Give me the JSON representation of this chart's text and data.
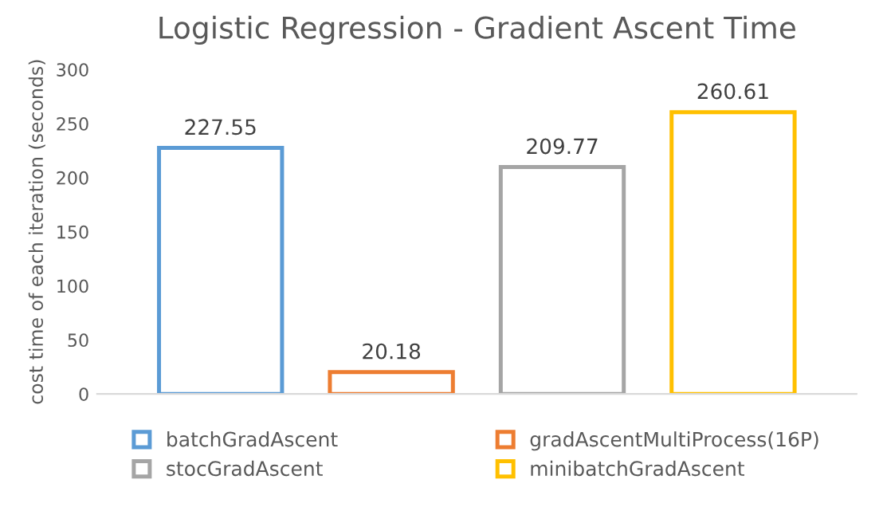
{
  "chart_data": {
    "type": "bar",
    "title": "Logistic Regression - Gradient Ascent Time",
    "ylabel": "cost time of each iteration (seconds)",
    "categories": [
      null
    ],
    "series": [
      {
        "name": "batchGradAscent",
        "color": "#5b9bd5",
        "values": [
          227.55
        ]
      },
      {
        "name": "gradAscentMultiProcess(16P)",
        "color": "#ed7d31",
        "values": [
          20.18
        ]
      },
      {
        "name": "stocGradAscent",
        "color": "#a5a5a5",
        "values": [
          209.77
        ]
      },
      {
        "name": "minibatchGradAscent",
        "color": "#ffc000",
        "values": [
          260.61
        ]
      }
    ],
    "ylim": [
      0,
      300
    ],
    "yticks": [
      0,
      50,
      100,
      150,
      200,
      250,
      300
    ],
    "data_labels": true,
    "legend": "bottom",
    "grid": false
  }
}
